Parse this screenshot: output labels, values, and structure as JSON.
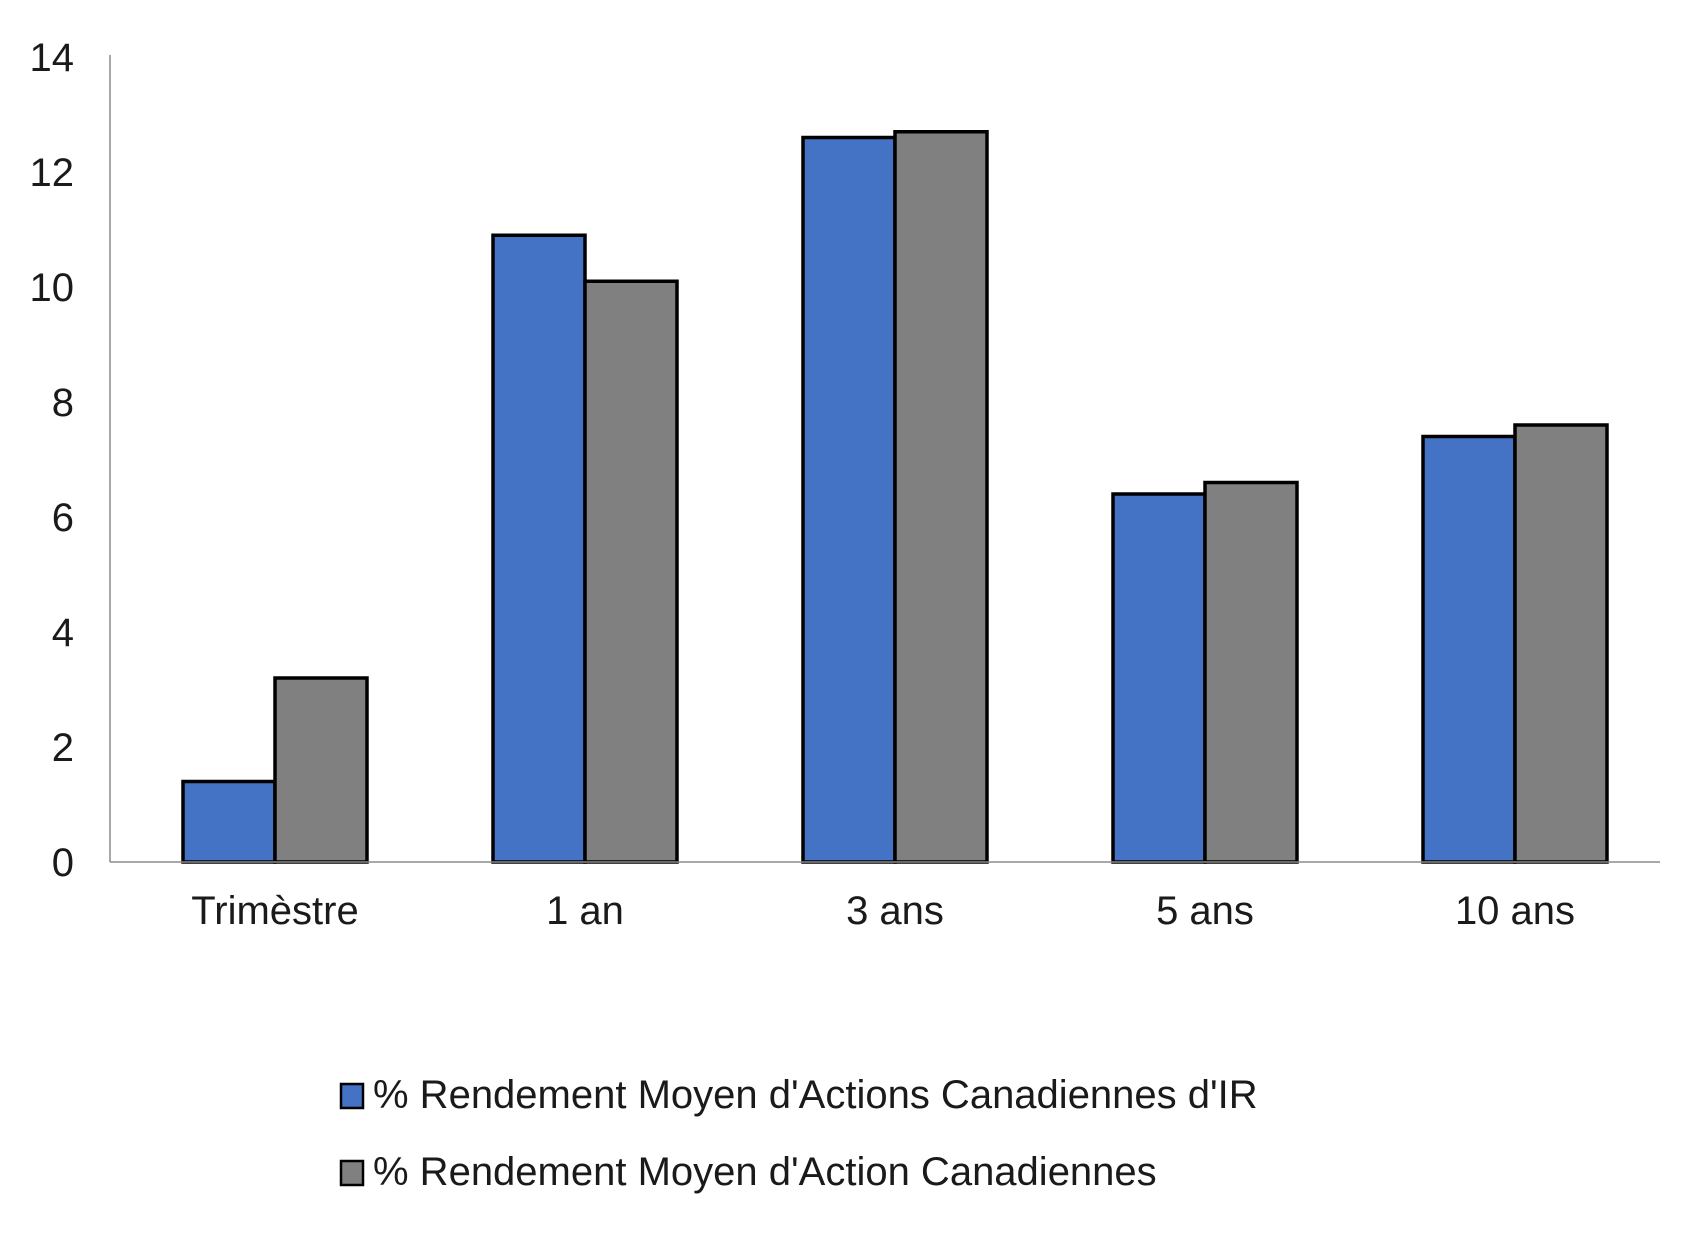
{
  "chart_data": {
    "type": "bar",
    "title": "",
    "xlabel": "",
    "ylabel": "",
    "categories": [
      "Trimèstre",
      "1 an",
      "3 ans",
      "5 ans",
      "10 ans"
    ],
    "series": [
      {
        "name": "% Rendement Moyen d'Actions Canadiennes d'IR",
        "color": "#4472c4",
        "values": [
          1.4,
          10.9,
          12.6,
          6.4,
          7.4
        ]
      },
      {
        "name": "% Rendement Moyen d'Action Canadiennes",
        "color": "#808080",
        "values": [
          3.2,
          10.1,
          12.7,
          6.6,
          7.6
        ]
      }
    ],
    "ylim": [
      0,
      14
    ],
    "yticks": [
      "0",
      "2",
      "4",
      "6",
      "8",
      "10",
      "12",
      "14"
    ],
    "grid": false,
    "legend_position": "bottom",
    "bar_outline_color": "#000000",
    "axis_color": "#8c8c8c"
  }
}
